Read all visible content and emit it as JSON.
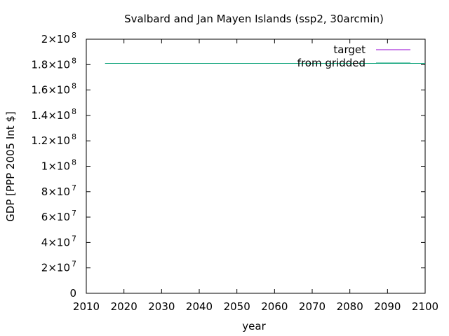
{
  "chart_data": {
    "type": "line",
    "title": "Svalbard and Jan Mayen Islands (ssp2, 30arcmin)",
    "xlabel": "year",
    "ylabel": "GDP [PPP 2005 Int $]",
    "xlim": [
      2010,
      2100
    ],
    "ylim": [
      0,
      200000000
    ],
    "x_ticks": [
      {
        "value": 2010,
        "label": "2010"
      },
      {
        "value": 2020,
        "label": "2020"
      },
      {
        "value": 2030,
        "label": "2030"
      },
      {
        "value": 2040,
        "label": "2040"
      },
      {
        "value": 2050,
        "label": "2050"
      },
      {
        "value": 2060,
        "label": "2060"
      },
      {
        "value": 2070,
        "label": "2070"
      },
      {
        "value": 2080,
        "label": "2080"
      },
      {
        "value": 2090,
        "label": "2090"
      },
      {
        "value": 2100,
        "label": "2100"
      }
    ],
    "y_ticks": [
      {
        "value": 0,
        "mantissa": "0",
        "exponent": ""
      },
      {
        "value": 20000000,
        "mantissa": "2×10",
        "exponent": "7"
      },
      {
        "value": 40000000,
        "mantissa": "4×10",
        "exponent": "7"
      },
      {
        "value": 60000000,
        "mantissa": "6×10",
        "exponent": "7"
      },
      {
        "value": 80000000,
        "mantissa": "8×10",
        "exponent": "7"
      },
      {
        "value": 100000000,
        "mantissa": "1×10",
        "exponent": "8"
      },
      {
        "value": 120000000,
        "mantissa": "1.2×10",
        "exponent": "8"
      },
      {
        "value": 140000000,
        "mantissa": "1.4×10",
        "exponent": "8"
      },
      {
        "value": 160000000,
        "mantissa": "1.6×10",
        "exponent": "8"
      },
      {
        "value": 180000000,
        "mantissa": "1.8×10",
        "exponent": "8"
      },
      {
        "value": 200000000,
        "mantissa": "2×10",
        "exponent": "8"
      }
    ],
    "legend_position": "top-right",
    "grid": false,
    "series": [
      {
        "name": "target",
        "color": "#9400d3",
        "x": [
          2015,
          2100
        ],
        "y": [
          181000000,
          181000000
        ]
      },
      {
        "name": "from gridded",
        "color": "#009e73",
        "x": [
          2015,
          2100
        ],
        "y": [
          181000000,
          181000000
        ]
      }
    ]
  }
}
